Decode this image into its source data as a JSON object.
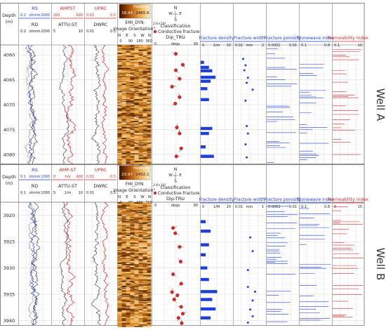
{
  "chart_data": [
    {
      "type": "well_log",
      "well_label": "Well A",
      "depth_label": "Depth",
      "depth_unit": "(m)",
      "depth_ticks": [
        4060,
        4065,
        4070,
        4075,
        4080
      ],
      "depth_range": [
        4058,
        4082
      ],
      "tracks": [
        {
          "header": [
            "RS",
            "ohmm",
            "0.2",
            "2000",
            "RD",
            "ohmm",
            "0.2",
            "2000"
          ],
          "colors": [
            "#1f3fd6",
            "#333333"
          ]
        },
        {
          "header": [
            "AMPST",
            "200",
            "600",
            "ATTU-ST",
            "5",
            "10"
          ],
          "colors": [
            "#d62a2a",
            "#333333"
          ]
        },
        {
          "header": [
            "UPRC",
            "0.01",
            "0.5",
            "DWRC",
            "0.01",
            "0.5"
          ],
          "colors": [
            "#d62a2a",
            "#333333"
          ]
        },
        {
          "header": [
            "Heated",
            "16.43",
            "2465.6",
            "EMI_DYN",
            "Image Orientation°",
            "N",
            "E",
            "S",
            "W",
            "N",
            "0",
            "90",
            "180",
            "360"
          ]
        },
        {
          "header": [
            "N",
            "W",
            "E",
            "S",
            "Classification",
            "Conductive fracture",
            "Dip_TRU",
            "0",
            "deqa",
            "90",
            "2.6×10²"
          ]
        },
        {
          "header": [
            "Fracture density",
            "0",
            "1/m",
            "10"
          ],
          "colors": [
            "#1f3fd6"
          ]
        },
        {
          "header": [
            "Fracture width",
            "0.01",
            "mm",
            "2"
          ],
          "colors": [
            "#1f3fd6"
          ]
        },
        {
          "header": [
            "Fracture porosity",
            "0.0001",
            "0.01"
          ],
          "colors": [
            "#1f3fd6"
          ]
        },
        {
          "header": [
            "Stonewave index",
            "0.1",
            "0.8"
          ],
          "colors": [
            "#1f3fd6"
          ]
        },
        {
          "header": [
            "Permeability index",
            "0.1",
            "10"
          ],
          "colors": [
            "#d62a2a"
          ]
        }
      ],
      "fracture_density": [
        [
          4061.5,
          1.0
        ],
        [
          4062.5,
          2.5
        ],
        [
          4063.2,
          3.5
        ],
        [
          4064.5,
          4.5
        ],
        [
          4065.3,
          3.0
        ],
        [
          4066.8,
          2.0
        ],
        [
          4069.0,
          2.5
        ],
        [
          4074.8,
          3.5
        ],
        [
          4075.8,
          2.5
        ],
        [
          4078.5,
          1.5
        ],
        [
          4080.4,
          4.0
        ]
      ],
      "dip_points": [
        [
          4059.8,
          45
        ],
        [
          4062.0,
          58
        ],
        [
          4063.1,
          45
        ],
        [
          4064.8,
          52
        ],
        [
          4066.4,
          38
        ],
        [
          4068.5,
          52
        ],
        [
          4069.8,
          44
        ],
        [
          4074.6,
          47
        ],
        [
          4075.8,
          52
        ],
        [
          4078.8,
          55
        ],
        [
          4080.4,
          46
        ]
      ],
      "fracture_width_points": [
        [
          4060.8,
          0.8
        ],
        [
          4062.1,
          1.0
        ],
        [
          4063.1,
          0.9
        ],
        [
          4064.6,
          1.2
        ],
        [
          4065.6,
          1.1
        ],
        [
          4067.0,
          1.6
        ],
        [
          4069.2,
          1.0
        ],
        [
          4074.3,
          1.1
        ],
        [
          4075.8,
          1.2
        ],
        [
          4078.0,
          1.0
        ],
        [
          4080.6,
          1.1
        ]
      ]
    },
    {
      "type": "well_log",
      "well_label": "Well B",
      "depth_label": "Depth",
      "depth_unit": "(m)",
      "depth_ticks": [
        3920,
        3925,
        3930,
        3935,
        3940
      ],
      "depth_range": [
        3917.5,
        3941
      ],
      "tracks": [
        {
          "header": [
            "RS",
            "ohmm",
            "0.1",
            "1000",
            "RD",
            "ohmm",
            "0.1",
            "1000"
          ],
          "colors": [
            "#1f3fd6",
            "#333333"
          ]
        },
        {
          "header": [
            "AMP-ST",
            "0",
            "mV",
            "400",
            "ATTU-ST",
            "5",
            "1/m",
            "10"
          ],
          "colors": [
            "#d62a2a",
            "#333333"
          ]
        },
        {
          "header": [
            "UPRC",
            "0.01",
            "0.5",
            "DWRC",
            "0.01",
            "0.5"
          ],
          "colors": [
            "#d62a2a",
            "#333333"
          ]
        },
        {
          "header": [
            "Heated",
            "23.97",
            "2432.1",
            "FMI_DYN",
            "Image Orientation°",
            "N",
            "E",
            "S",
            "W",
            "N",
            "0",
            "90",
            "180",
            "360"
          ]
        },
        {
          "header": [
            "N",
            "W",
            "E",
            "S",
            "Classification",
            "Conductive fracture",
            "Dip-TRU",
            "0",
            "deqa",
            "90",
            "2.6×10²"
          ]
        },
        {
          "header": [
            "Fracture density",
            "0",
            "1/M",
            "20"
          ],
          "colors": [
            "#1f3fd6"
          ]
        },
        {
          "header": [
            "Fracture width",
            "0.01",
            "mm",
            "1"
          ],
          "colors": [
            "#1f3fd6"
          ]
        },
        {
          "header": [
            "Fracture porosity",
            "0.0001",
            "0.01"
          ],
          "colors": [
            "#1f3fd6"
          ]
        },
        {
          "header": [
            "Stonewave index",
            "0.1",
            "0.8"
          ],
          "colors": [
            "#1f3fd6"
          ]
        },
        {
          "header": [
            "Permeability index",
            "0",
            "15"
          ],
          "colors": [
            "#d62a2a"
          ]
        }
      ],
      "fracture_density": [
        [
          3921.2,
          1.5
        ],
        [
          3923.0,
          3.0
        ],
        [
          3925.6,
          2.5
        ],
        [
          3927.5,
          1.5
        ],
        [
          3930.0,
          2.0
        ],
        [
          3932.2,
          2.5
        ],
        [
          3934.5,
          5.0
        ],
        [
          3936.0,
          3.5
        ],
        [
          3937.8,
          4.5
        ],
        [
          3939.5,
          3.0
        ]
      ],
      "dip_points": [
        [
          3922.4,
          40
        ],
        [
          3923.4,
          44
        ],
        [
          3926.0,
          52
        ],
        [
          3928.8,
          54
        ],
        [
          3931.2,
          40
        ],
        [
          3933.0,
          55
        ],
        [
          3934.6,
          38
        ],
        [
          3935.2,
          48
        ],
        [
          3936.0,
          42
        ],
        [
          3937.4,
          55
        ],
        [
          3938.7,
          58
        ],
        [
          3939.5,
          50
        ],
        [
          3940.5,
          56
        ]
      ],
      "fracture_width_points": [
        [
          3924.2,
          0.7
        ],
        [
          3926.8,
          0.8
        ],
        [
          3930.4,
          0.6
        ],
        [
          3933.6,
          0.6
        ],
        [
          3934.5,
          0.9
        ],
        [
          3936.2,
          0.8
        ],
        [
          3937.9,
          0.7
        ],
        [
          3939.2,
          0.8
        ],
        [
          3940.4,
          0.6
        ]
      ]
    }
  ]
}
